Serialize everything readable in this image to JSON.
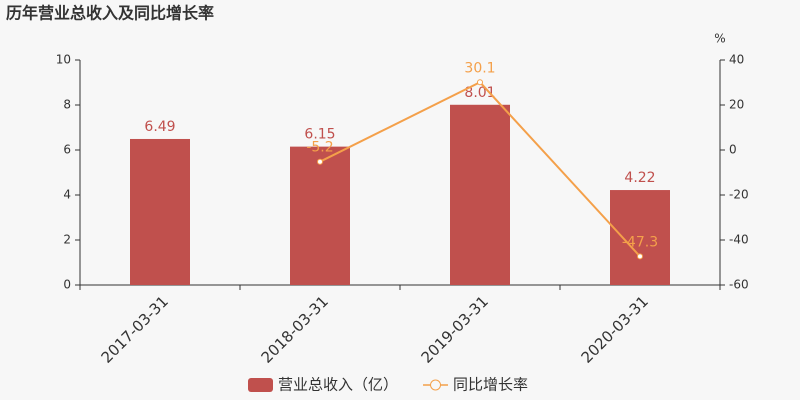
{
  "chart_data": {
    "type": "bar-line",
    "title": "历年营业总收入及同比增长率",
    "categories": [
      "2017-03-31",
      "2018-03-31",
      "2019-03-31",
      "2020-03-31"
    ],
    "series": [
      {
        "name": "营业总收入（亿）",
        "type": "bar",
        "color": "#c0504d",
        "values": [
          6.49,
          6.15,
          8.01,
          4.22
        ]
      },
      {
        "name": "同比增长率",
        "type": "line",
        "axis": "y2",
        "color": "#f4a04a",
        "values": [
          null,
          -5.2,
          30.1,
          -47.3
        ]
      }
    ],
    "ylim": [
      0,
      10
    ],
    "yticks": [
      0,
      2,
      4,
      6,
      8,
      10
    ],
    "y2lim": [
      -60,
      40
    ],
    "y2ticks": [
      -60,
      -40,
      -20,
      0,
      20,
      40
    ],
    "y2_label": "%",
    "grid": false,
    "legend": "bottom"
  }
}
